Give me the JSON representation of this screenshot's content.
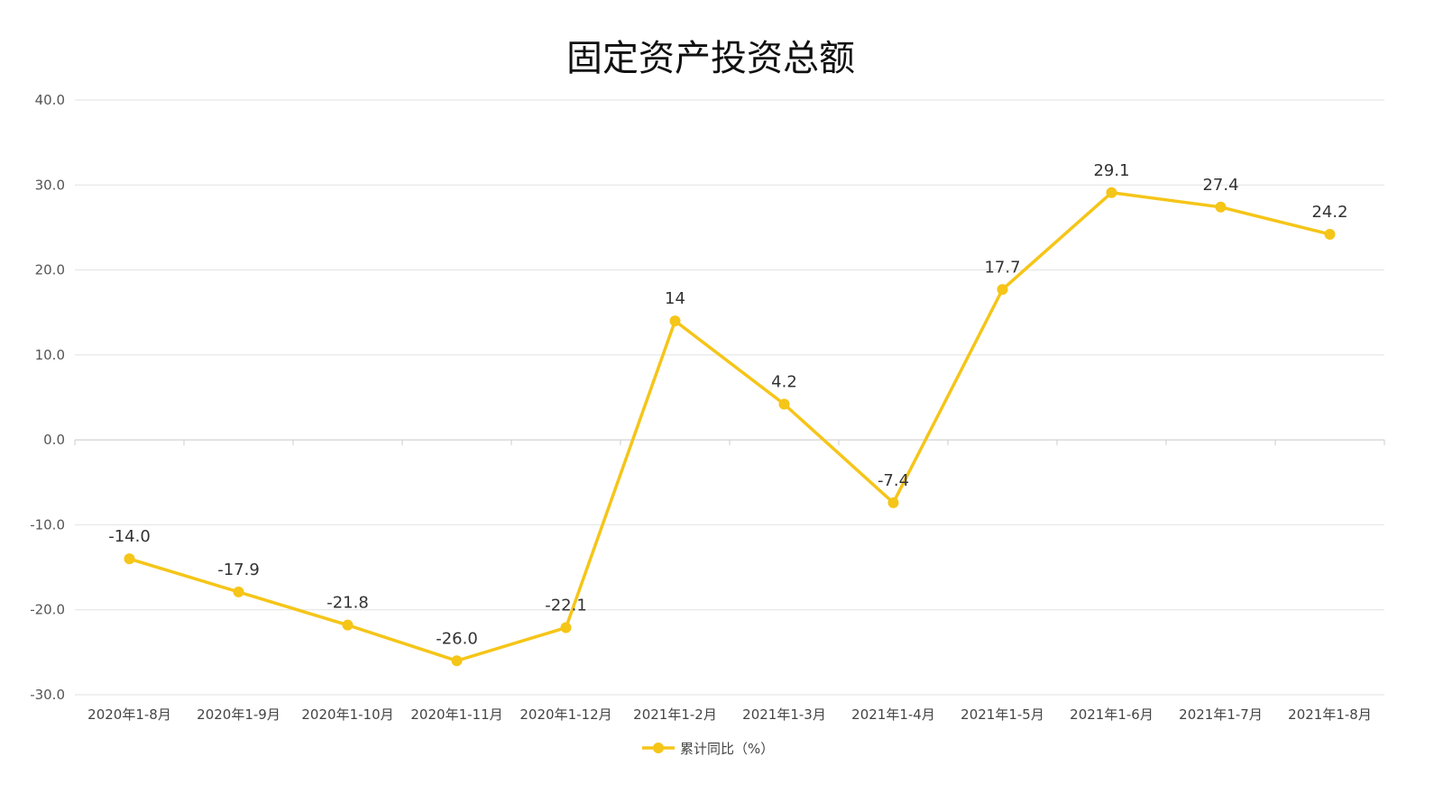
{
  "chart_data": {
    "type": "line",
    "title": "固定资产投资总额",
    "categories": [
      "2020年1-8月",
      "2020年1-9月",
      "2020年1-10月",
      "2020年1-11月",
      "2020年1-12月",
      "2021年1-2月",
      "2021年1-3月",
      "2021年1-4月",
      "2021年1-5月",
      "2021年1-6月",
      "2021年1-7月",
      "2021年1-8月"
    ],
    "series": [
      {
        "name": "累计同比（%）",
        "values": [
          -14.0,
          -17.9,
          -21.8,
          -26.0,
          -22.1,
          14,
          4.2,
          -7.4,
          17.7,
          29.1,
          27.4,
          24.2
        ],
        "labels": [
          "-14.0",
          "-17.9",
          "-21.8",
          "-26.0",
          "-22.1",
          "14",
          "4.2",
          "-7.4",
          "17.7",
          "29.1",
          "27.4",
          "24.2"
        ]
      }
    ],
    "ylim": [
      -30,
      40
    ],
    "yticks": [
      "-30.0",
      "-20.0",
      "-10.0",
      "0.0",
      "10.0",
      "20.0",
      "30.0",
      "40.0"
    ],
    "grid": true,
    "legend_position": "bottom-center",
    "colors": {
      "line": "#F5C518",
      "grid": "#E2E2E2",
      "axis": "#CCCCCC"
    }
  }
}
